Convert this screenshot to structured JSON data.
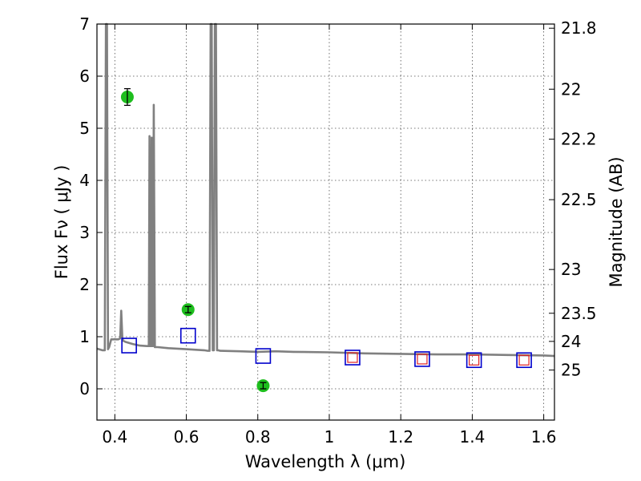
{
  "chart_data": {
    "type": "scatter",
    "title": "",
    "xlabel": "Wavelength  λ (μm)",
    "ylabel": "Flux  Fν  ( μJy )",
    "ylabel_right": "Magnitude (AB)",
    "xlim": [
      0.35,
      1.63
    ],
    "ylim": [
      -0.6,
      7.0
    ],
    "grid": true,
    "x_ticks": [
      0.4,
      0.6,
      0.8,
      1.0,
      1.2,
      1.4,
      1.6
    ],
    "x_tick_labels": [
      "0.4",
      "0.6",
      "0.8",
      "1",
      "1.2",
      "1.4",
      "1.6"
    ],
    "y_ticks": [
      0,
      1,
      2,
      3,
      4,
      5,
      6,
      7
    ],
    "y_tick_labels": [
      "0",
      "1",
      "2",
      "3",
      "4",
      "5",
      "6",
      "7"
    ],
    "right_ticks": [
      {
        "label": "21.8",
        "flux": 6.92
      },
      {
        "label": "22",
        "flux": 5.75
      },
      {
        "label": "22.2",
        "flux": 4.79
      },
      {
        "label": "22.5",
        "flux": 3.63
      },
      {
        "label": "23",
        "flux": 2.29
      },
      {
        "label": "23.5",
        "flux": 1.45
      },
      {
        "label": "24",
        "flux": 0.91
      },
      {
        "label": "25",
        "flux": 0.36
      }
    ],
    "series": [
      {
        "marker": "circle",
        "color": "#1ebe1e",
        "x": [
          0.435,
          0.605,
          0.815
        ],
        "y": [
          5.6,
          1.52,
          0.06
        ],
        "yerr": [
          0.16,
          0.06,
          0.06
        ]
      },
      {
        "marker": "open-square",
        "color": "#0000cc",
        "x": [
          0.44,
          0.605,
          0.815,
          1.065,
          1.26,
          1.405,
          1.545
        ],
        "y": [
          0.83,
          1.02,
          0.63,
          0.6,
          0.57,
          0.55,
          0.55
        ]
      },
      {
        "marker": "open-square-small",
        "color": "#e02020",
        "x": [
          1.065,
          1.26,
          1.405,
          1.545
        ],
        "y": [
          0.6,
          0.57,
          0.55,
          0.55
        ]
      },
      {
        "type": "line",
        "color": "#808080",
        "x": [
          0.35,
          0.365,
          0.372,
          0.375,
          0.378,
          0.381,
          0.384,
          0.39,
          0.4,
          0.41,
          0.415,
          0.418,
          0.421,
          0.424,
          0.43,
          0.45,
          0.47,
          0.49,
          0.495,
          0.497,
          0.499,
          0.501,
          0.503,
          0.505,
          0.507,
          0.509,
          0.512,
          0.52,
          0.55,
          0.6,
          0.65,
          0.66,
          0.665,
          0.668,
          0.671,
          0.674,
          0.677,
          0.68,
          0.683,
          0.686,
          0.689,
          0.695,
          0.75,
          0.8,
          0.85,
          0.9,
          1.0,
          1.1,
          1.2,
          1.3,
          1.4,
          1.5,
          1.6,
          1.63
        ],
        "y": [
          0.77,
          0.74,
          0.74,
          7.0,
          7.0,
          0.76,
          0.8,
          0.95,
          0.95,
          0.95,
          0.97,
          1.5,
          0.97,
          0.92,
          0.9,
          0.86,
          0.83,
          0.82,
          0.82,
          4.85,
          0.82,
          0.82,
          4.82,
          0.82,
          0.82,
          5.45,
          0.8,
          0.8,
          0.78,
          0.76,
          0.74,
          0.73,
          0.73,
          7.0,
          7.0,
          0.74,
          0.74,
          7.0,
          7.0,
          0.74,
          0.74,
          0.73,
          0.72,
          0.71,
          0.72,
          0.71,
          0.7,
          0.68,
          0.67,
          0.66,
          0.66,
          0.65,
          0.64,
          0.63
        ]
      }
    ]
  }
}
